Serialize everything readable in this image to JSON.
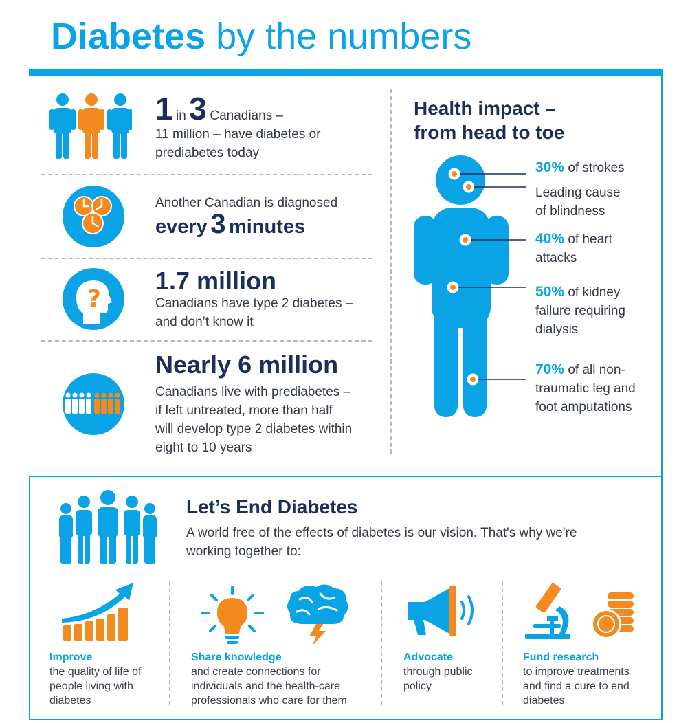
{
  "header": {
    "title_bold": "Diabetes",
    "title_light": "by the numbers"
  },
  "stats": [
    {
      "num1": "1",
      "in_word": "in",
      "num2": "3",
      "rest1": "Canadians –",
      "rest2": "11 million – have diabetes or",
      "rest3": "prediabetes today",
      "icon": "three-people-icon"
    },
    {
      "line1": "Another Canadian is diagnosed",
      "every": "every",
      "num": "3",
      "minutes": "minutes",
      "icon": "clocks-icon"
    },
    {
      "headline": "1.7 million",
      "line1": "Canadians have type 2 diabetes –",
      "line2": "and don’t know it",
      "icon": "question-head-icon"
    },
    {
      "headline": "Nearly 6 million",
      "line1": "Canadians live with prediabetes –",
      "line2": "if left untreated, more than half",
      "line3": "will develop type 2 diabetes within",
      "line4": "eight to 10 years",
      "icon": "crowd-icon"
    }
  ],
  "health": {
    "title1": "Health impact –",
    "title2": "from head to toe",
    "impacts": [
      {
        "pct": "30%",
        "line1": "of strokes"
      },
      {
        "pct": "",
        "line1": "Leading cause",
        "line2": "of blindness"
      },
      {
        "pct": "40%",
        "line1": "of heart",
        "line2": "attacks"
      },
      {
        "pct": "50%",
        "line1": "of kidney",
        "line2": "failure requiring",
        "line3": "dialysis"
      },
      {
        "pct": "70%",
        "line1": "of all non-",
        "line2": "traumatic leg and",
        "line3": "foot amputations"
      }
    ]
  },
  "end": {
    "title": "Let’s End Diabetes",
    "line1": "A world free of the effects of diabetes is our vision. That's why we're",
    "line2": "working together to:",
    "actions": [
      {
        "heading": "Improve",
        "line1": "the quality of life of",
        "line2": "people living with",
        "line3": "diabetes"
      },
      {
        "heading": "Share knowledge",
        "line1": "and create connections for",
        "line2": "individuals and the health-care",
        "line3": "professionals who care for them"
      },
      {
        "heading": "Advocate",
        "line1": "through public",
        "line2": "policy"
      },
      {
        "heading": "Fund research",
        "line1": "to improve treatments",
        "line2": "and find a cure to end",
        "line3": "diabetes"
      }
    ]
  },
  "colors": {
    "blue": "#0aa4e6",
    "navy": "#1d2d5c",
    "orange": "#f28a1f"
  }
}
